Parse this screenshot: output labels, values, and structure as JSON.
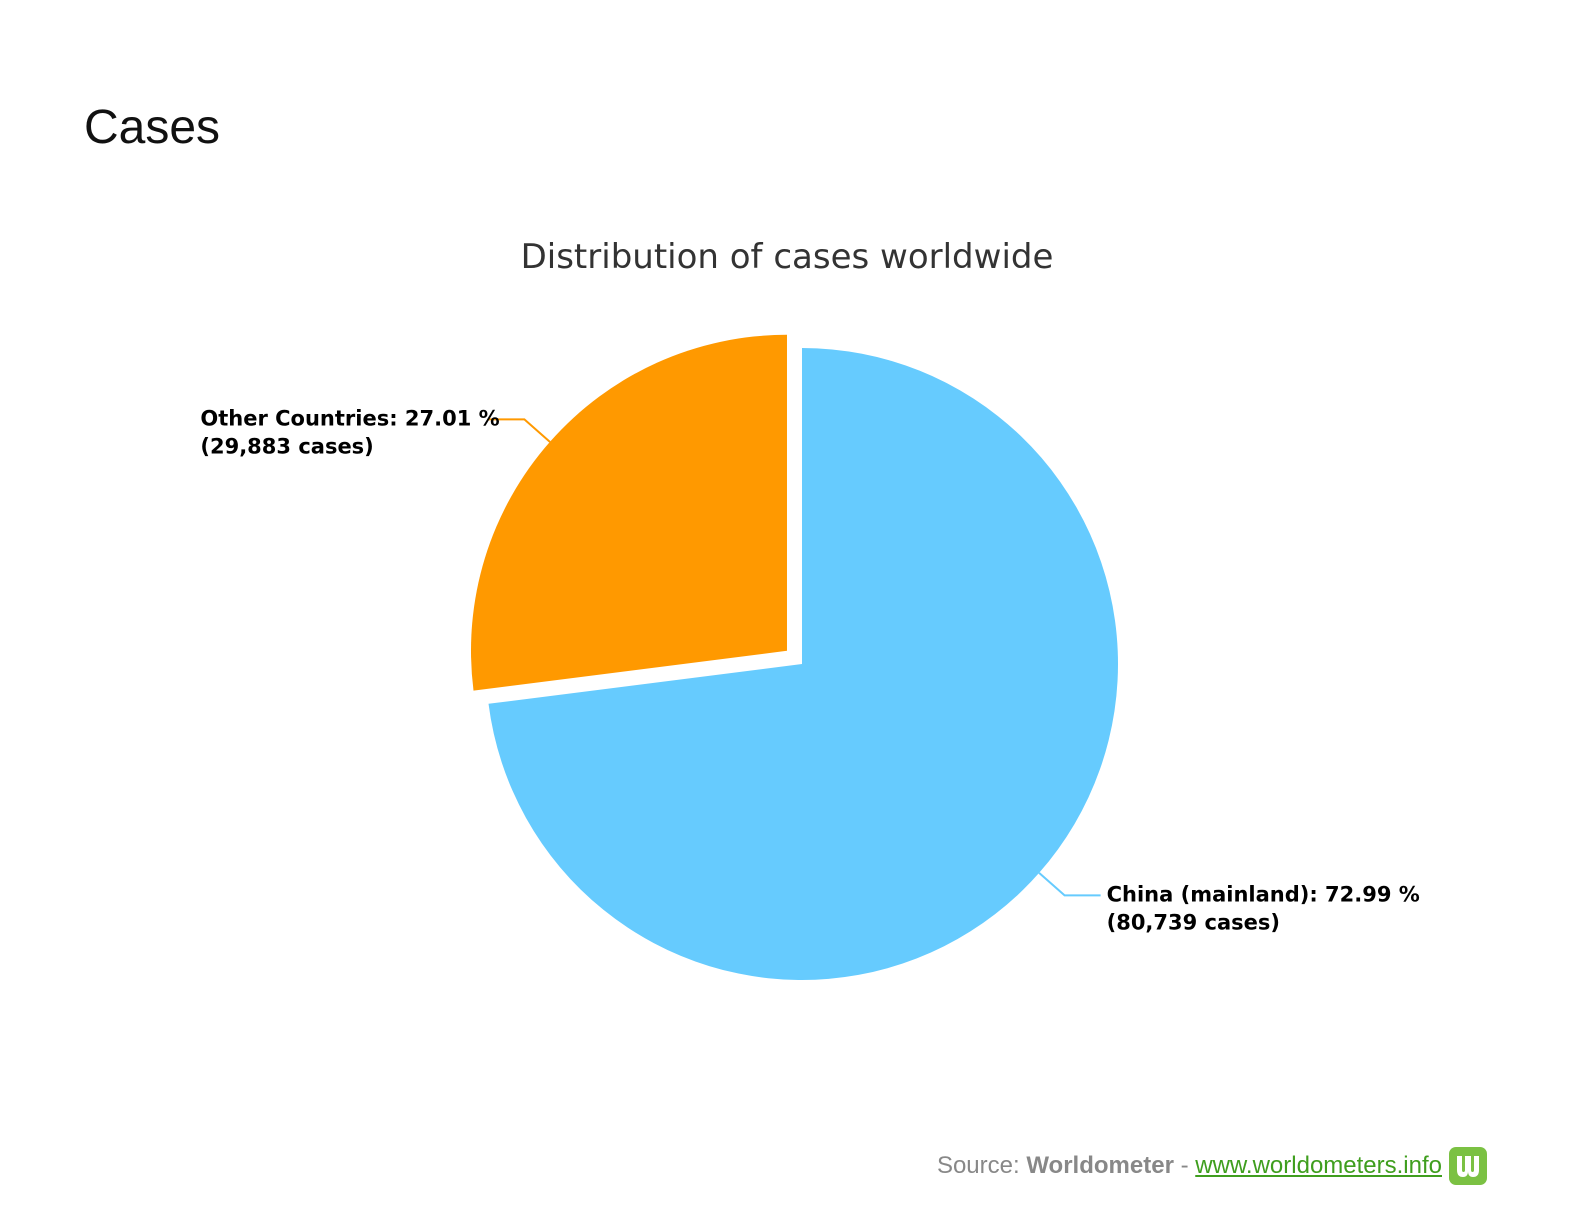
{
  "page": {
    "heading": "Cases"
  },
  "source": {
    "prefix": "Source:",
    "brand": "Worldometer",
    "separator": "-",
    "link_text": "www.worldometers.info",
    "logo_icon": "worldometer-w-logo-icon",
    "logo_color": "#7bc143",
    "link_color": "#3f9e1e"
  },
  "chart_data": {
    "type": "pie",
    "title": "Distribution of cases worldwide",
    "slices": [
      {
        "name": "China (mainland)",
        "percent": 72.99,
        "cases": 80739,
        "label_line1": "China (mainland): 72.99 %",
        "label_line2": "(80,739 cases)",
        "color": "#66cbfe",
        "exploded": false
      },
      {
        "name": "Other Countries",
        "percent": 27.01,
        "cases": 29883,
        "label_line1": "Other Countries: 27.01 %",
        "label_line2": "(29,883 cases)",
        "color": "#ff9900",
        "exploded": true
      }
    ],
    "start_angle": "12 o'clock",
    "direction": "clockwise",
    "legend": "none",
    "data_labels": "outside with connector lines"
  }
}
